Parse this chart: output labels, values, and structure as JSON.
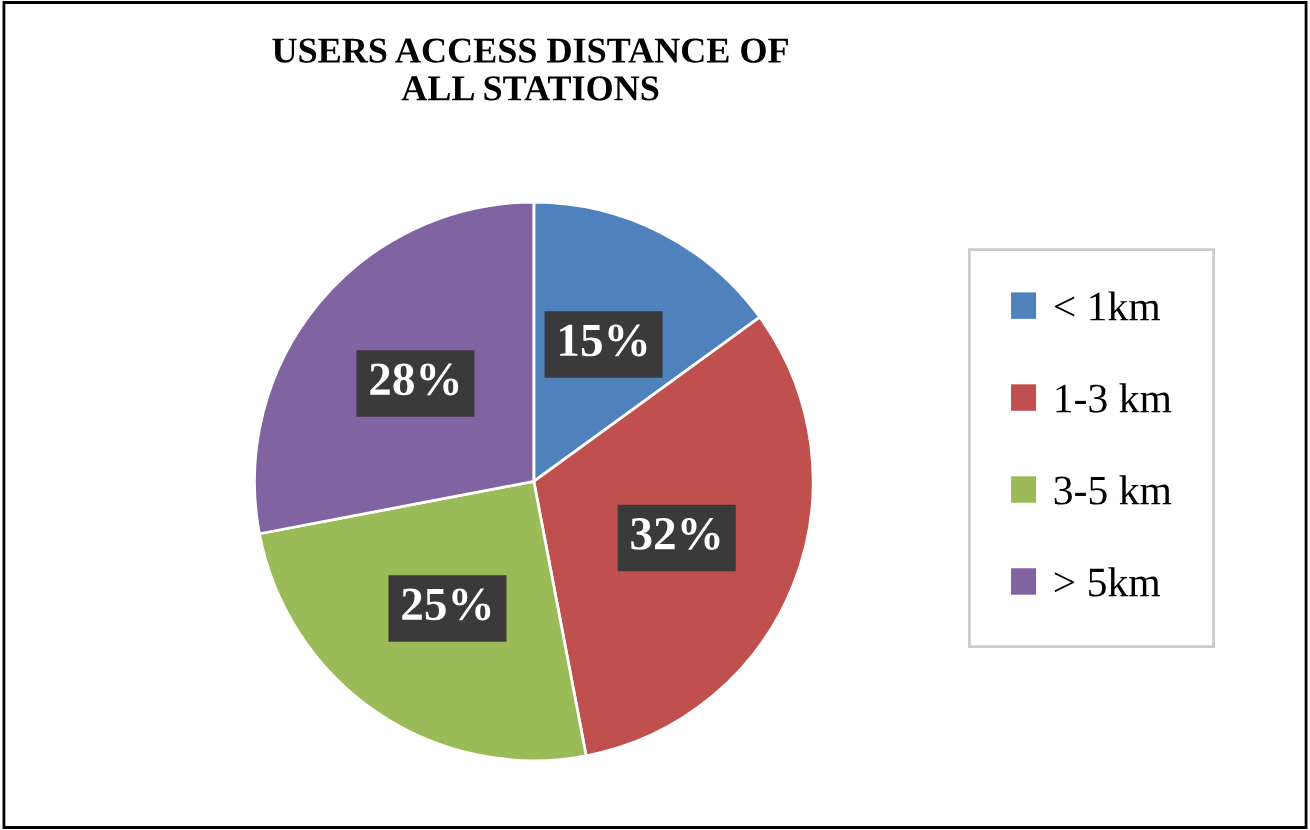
{
  "chart_data": {
    "type": "pie",
    "title": "USERS ACCESS DISTANCE OF\nALL STATIONS",
    "categories": [
      "< 1km",
      "1-3 km",
      "3-5 km",
      "> 5km"
    ],
    "values": [
      15,
      32,
      25,
      28
    ],
    "colors": [
      "#4f81bd",
      "#c0504d",
      "#9bbb59",
      "#8064a2"
    ],
    "value_labels": [
      "15%",
      "32%",
      "25%",
      "28%"
    ],
    "legend": "right"
  }
}
